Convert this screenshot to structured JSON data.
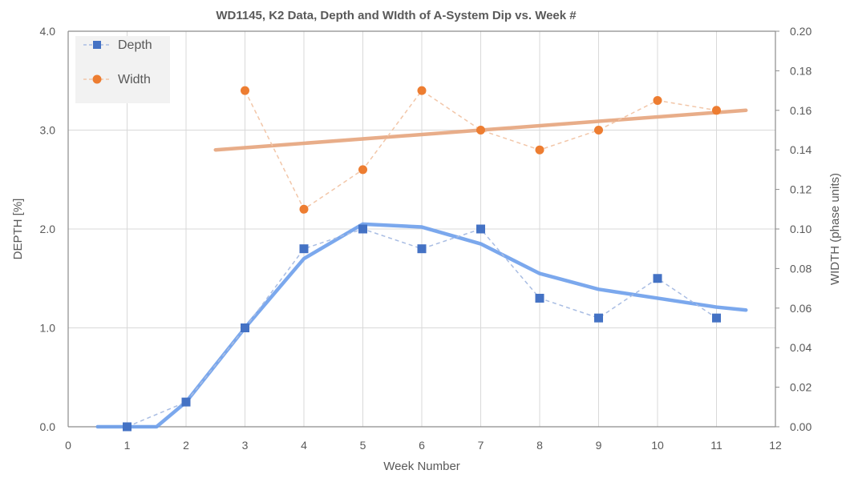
{
  "chart_data": {
    "type": "line",
    "title": "WD1145, K2 Data, Depth and WIdth of A-System Dip vs. Week #",
    "xlabel": "Week Number",
    "ylabel": "DEPTH [%]",
    "y2label": "WIDTH (phase units)",
    "xlim": [
      0,
      12
    ],
    "ylim": [
      0,
      4.0
    ],
    "y2lim": [
      0,
      0.2
    ],
    "grid": true,
    "legend_position": "top-left",
    "x_ticks": [
      "0",
      "1",
      "2",
      "3",
      "4",
      "5",
      "6",
      "7",
      "8",
      "9",
      "10",
      "11",
      "12"
    ],
    "y_ticks": [
      "0.0",
      "1.0",
      "2.0",
      "3.0",
      "4.0"
    ],
    "y2_ticks": [
      "0.00",
      "0.02",
      "0.04",
      "0.06",
      "0.08",
      "0.10",
      "0.12",
      "0.14",
      "0.16",
      "0.18",
      "0.20"
    ],
    "series": [
      {
        "name": "Depth",
        "axis": "left",
        "marker": "square",
        "color": "#4472c4",
        "x": [
          1,
          2,
          3,
          4,
          5,
          6,
          7,
          8,
          9,
          10,
          11
        ],
        "values": [
          0.0,
          0.25,
          1.0,
          1.8,
          2.0,
          1.8,
          2.0,
          1.3,
          1.1,
          1.5,
          1.1
        ]
      },
      {
        "name": "Width",
        "axis": "right",
        "marker": "circle",
        "color": "#ed7d31",
        "x": [
          3,
          4,
          5,
          6,
          7,
          8,
          9,
          10,
          11
        ],
        "values": [
          0.17,
          0.11,
          0.13,
          0.17,
          0.15,
          0.14,
          0.15,
          0.165,
          0.16
        ]
      }
    ],
    "trendlines": [
      {
        "of": "Depth",
        "axis": "left",
        "color": "#6d9eeb",
        "x": [
          0.5,
          1.5,
          2,
          3,
          4,
          5,
          6,
          7,
          8,
          9,
          10,
          11,
          11.5
        ],
        "values": [
          0,
          0,
          0.25,
          1.0,
          1.7,
          2.05,
          2.02,
          1.85,
          1.55,
          1.39,
          1.3,
          1.21,
          1.18
        ]
      },
      {
        "of": "Width",
        "axis": "right",
        "color": "#e6a47c",
        "x": [
          2.5,
          11.5
        ],
        "values": [
          0.14,
          0.16
        ]
      }
    ]
  }
}
